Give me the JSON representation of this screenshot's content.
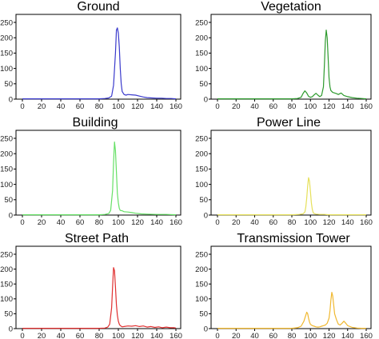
{
  "chart_data": [
    {
      "type": "line",
      "title": "Ground",
      "color": "#3a3acc",
      "xlim": [
        0,
        160
      ],
      "ylim": [
        0,
        250
      ],
      "xticks": [
        0,
        20,
        40,
        60,
        80,
        100,
        120,
        140,
        160
      ],
      "yticks": [
        0,
        50,
        100,
        150,
        200,
        250
      ],
      "x": [
        0,
        20,
        40,
        60,
        80,
        86,
        90,
        93,
        95,
        97,
        98,
        99,
        100,
        101,
        102,
        103,
        104,
        106,
        108,
        110,
        114,
        118,
        122,
        126,
        130,
        135,
        140,
        145,
        150,
        155,
        160
      ],
      "y": [
        1,
        1,
        1,
        1,
        1,
        2,
        4,
        10,
        45,
        150,
        225,
        232,
        215,
        170,
        100,
        50,
        25,
        15,
        13,
        15,
        14,
        13,
        10,
        7,
        5,
        4,
        3,
        3,
        2,
        2,
        1
      ]
    },
    {
      "type": "line",
      "title": "Vegetation",
      "color": "#2e9a2e",
      "xlim": [
        0,
        160
      ],
      "ylim": [
        0,
        250
      ],
      "xticks": [
        0,
        20,
        40,
        60,
        80,
        100,
        120,
        140,
        160
      ],
      "yticks": [
        0,
        50,
        100,
        150,
        200,
        250
      ],
      "x": [
        0,
        20,
        40,
        60,
        80,
        86,
        90,
        92,
        94,
        96,
        98,
        100,
        102,
        104,
        106,
        108,
        110,
        112,
        114,
        115,
        116,
        117,
        118,
        119,
        120,
        121,
        122,
        124,
        126,
        128,
        130,
        133,
        136,
        140,
        145,
        150,
        155,
        160
      ],
      "y": [
        1,
        1,
        1,
        1,
        1,
        2,
        6,
        18,
        27,
        20,
        9,
        6,
        8,
        14,
        19,
        13,
        8,
        12,
        40,
        110,
        190,
        225,
        200,
        140,
        70,
        40,
        28,
        22,
        20,
        18,
        15,
        20,
        12,
        8,
        5,
        3,
        2,
        1
      ]
    },
    {
      "type": "line",
      "title": "Building",
      "color": "#66e066",
      "xlim": [
        0,
        160
      ],
      "ylim": [
        0,
        250
      ],
      "xticks": [
        0,
        20,
        40,
        60,
        80,
        100,
        120,
        140,
        160
      ],
      "yticks": [
        0,
        50,
        100,
        150,
        200,
        250
      ],
      "x": [
        0,
        20,
        40,
        60,
        80,
        86,
        90,
        92,
        94,
        95,
        96,
        97,
        98,
        99,
        100,
        101,
        102,
        104,
        106,
        110,
        114,
        118,
        124,
        130,
        140,
        150,
        160
      ],
      "y": [
        1,
        1,
        1,
        1,
        1,
        2,
        5,
        15,
        80,
        170,
        238,
        210,
        140,
        70,
        40,
        22,
        15,
        14,
        11,
        10,
        8,
        6,
        4,
        3,
        2,
        2,
        1
      ]
    },
    {
      "type": "line",
      "title": "Power Line",
      "color": "#e6e05a",
      "xlim": [
        0,
        160
      ],
      "ylim": [
        0,
        250
      ],
      "xticks": [
        0,
        20,
        40,
        60,
        80,
        100,
        120,
        140,
        160
      ],
      "yticks": [
        0,
        50,
        100,
        150,
        200,
        250
      ],
      "x": [
        0,
        20,
        40,
        60,
        80,
        88,
        92,
        94,
        95,
        96,
        97,
        98,
        99,
        100,
        101,
        102,
        103,
        104,
        106,
        110,
        115,
        120,
        130,
        140,
        150,
        160
      ],
      "y": [
        1,
        1,
        1,
        1,
        1,
        2,
        4,
        10,
        25,
        55,
        95,
        122,
        110,
        75,
        40,
        18,
        8,
        5,
        3,
        2,
        2,
        1,
        1,
        1,
        1,
        1
      ]
    },
    {
      "type": "line",
      "title": "Street Path",
      "color": "#e03030",
      "xlim": [
        0,
        160
      ],
      "ylim": [
        0,
        250
      ],
      "xticks": [
        0,
        20,
        40,
        60,
        80,
        100,
        120,
        140,
        160
      ],
      "yticks": [
        0,
        50,
        100,
        150,
        200,
        250
      ],
      "x": [
        0,
        20,
        40,
        60,
        80,
        86,
        89,
        91,
        93,
        94,
        95,
        96,
        97,
        98,
        99,
        100,
        101,
        102,
        104,
        106,
        110,
        114,
        118,
        122,
        126,
        130,
        134,
        138,
        142,
        146,
        150,
        154,
        158,
        160
      ],
      "y": [
        1,
        1,
        1,
        1,
        1,
        2,
        5,
        15,
        70,
        140,
        205,
        195,
        140,
        80,
        45,
        25,
        15,
        10,
        6,
        7,
        9,
        8,
        10,
        7,
        9,
        5,
        7,
        4,
        6,
        3,
        5,
        3,
        3,
        2
      ]
    },
    {
      "type": "line",
      "title": "Transmission Tower",
      "color": "#f0b830",
      "xlim": [
        0,
        160
      ],
      "ylim": [
        0,
        250
      ],
      "xticks": [
        0,
        20,
        40,
        60,
        80,
        100,
        120,
        140,
        160
      ],
      "yticks": [
        0,
        50,
        100,
        150,
        200,
        250
      ],
      "x": [
        0,
        20,
        40,
        60,
        80,
        86,
        90,
        93,
        95,
        96,
        97,
        98,
        99,
        100,
        102,
        104,
        106,
        108,
        110,
        112,
        114,
        116,
        118,
        120,
        121,
        122,
        123,
        124,
        125,
        126,
        128,
        130,
        132,
        134,
        136,
        138,
        140,
        145,
        150,
        155,
        160
      ],
      "y": [
        1,
        1,
        1,
        1,
        1,
        3,
        8,
        25,
        45,
        55,
        50,
        35,
        22,
        14,
        10,
        8,
        6,
        5,
        6,
        8,
        10,
        12,
        18,
        35,
        60,
        95,
        122,
        110,
        80,
        50,
        30,
        15,
        12,
        18,
        25,
        18,
        10,
        4,
        2,
        1,
        1
      ]
    }
  ]
}
